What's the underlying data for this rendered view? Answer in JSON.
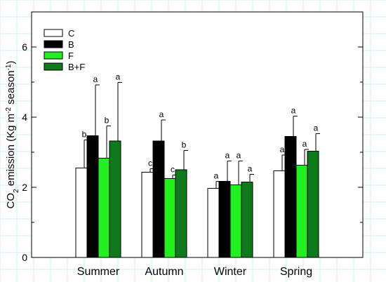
{
  "chart_data": {
    "type": "bar",
    "categories": [
      "Summer",
      "Autumn",
      "Winter",
      "Spring"
    ],
    "ylabel": {
      "main": "CO",
      "sub": "2",
      "rest": " emission (Kg m",
      "sup1": "-2",
      "rest2": " season",
      "sup2": "-1",
      "close": ")"
    },
    "ylim": [
      0,
      7
    ],
    "yticks": [
      0,
      2,
      4,
      6
    ],
    "legend_position": "top-left",
    "series": [
      {
        "name": "C",
        "color": "#ffffff",
        "values": [
          2.55,
          2.43,
          1.97,
          2.47
        ],
        "errors": [
          0.8,
          0.1,
          0.2,
          0.45
        ],
        "letters": [
          "b",
          "c",
          "a",
          "a"
        ]
      },
      {
        "name": "B",
        "color": "#000000",
        "values": [
          3.47,
          3.32,
          2.17,
          3.45
        ],
        "errors": [
          1.45,
          0.6,
          0.58,
          0.58
        ],
        "letters": [
          "a",
          "a",
          "a",
          "a"
        ]
      },
      {
        "name": "F",
        "color": "#22ee22",
        "values": [
          2.83,
          2.25,
          2.07,
          2.63
        ],
        "errors": [
          0.92,
          0.1,
          0.68,
          0.45
        ],
        "letters": [
          "b",
          "c",
          "a",
          "a"
        ]
      },
      {
        "name": "B+F",
        "color": "#0f7a1c",
        "values": [
          3.32,
          2.5,
          2.15,
          3.03
        ],
        "errors": [
          1.67,
          0.55,
          0.22,
          0.5
        ],
        "letters": [
          "a",
          "b",
          "a",
          "a"
        ]
      }
    ]
  }
}
